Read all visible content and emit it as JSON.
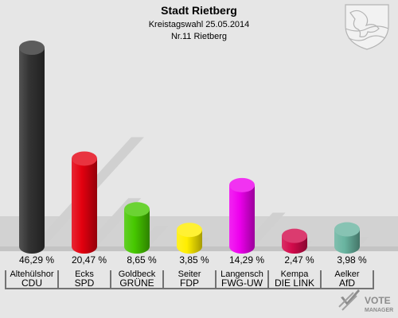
{
  "chart_data": {
    "type": "bar",
    "title": "Stadt Rietberg",
    "subtitle": "Kreistagswahl 25.05.2014",
    "subtitle2": "Nr.11 Rietberg",
    "ylim": [
      0,
      50
    ],
    "value_labels": [
      "46,29 %",
      "20,47 %",
      "8,65 %",
      "3,85 %",
      "14,29 %",
      "2,47 %",
      "3,98 %"
    ],
    "candidates": [
      "Altehülshor",
      "Ecks",
      "Goldbeck",
      "Seiter",
      "Langensch",
      "Kempa",
      "Aelker"
    ],
    "categories": [
      "CDU",
      "SPD",
      "GRÜNE",
      "FDP",
      "FWG-UW",
      "DIE LINK",
      "AfD"
    ],
    "values": [
      46.29,
      20.47,
      8.65,
      3.85,
      14.29,
      2.47,
      3.98
    ],
    "colors": [
      "#333333",
      "#e3000f",
      "#46c800",
      "#ffee00",
      "#ee00ee",
      "#d20a4b",
      "#69b4a0"
    ]
  },
  "watermark": {
    "line1": "VOTE",
    "line2": "MANAGER"
  }
}
